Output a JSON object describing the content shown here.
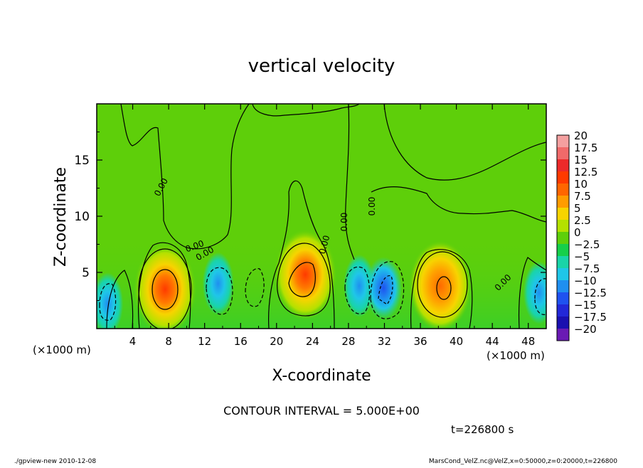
{
  "chart_data": {
    "type": "heatmap",
    "title": "vertical velocity",
    "xlabel": "X-coordinate",
    "ylabel": "Z-coordinate",
    "x_unit": "(×1000 m)",
    "y_unit": "(×1000 m)",
    "x_range": [
      0,
      50
    ],
    "y_range": [
      0,
      20
    ],
    "x_ticks": [
      "4",
      "8",
      "12",
      "16",
      "20",
      "24",
      "28",
      "32",
      "36",
      "40",
      "44",
      "48"
    ],
    "y_ticks": [
      "5",
      "10",
      "15"
    ],
    "grid": false,
    "contour_interval_text": "CONTOUR INTERVAL = 5.000E+00",
    "time_text": "t=226800 s",
    "contour_labels": [
      "0.00",
      "0.00",
      "0.00",
      "0.00",
      "0.00",
      "0.00",
      "0.00"
    ],
    "colorbar": {
      "levels": [
        "20",
        "17.5",
        "15",
        "12.5",
        "10",
        "7.5",
        "5",
        "2.5",
        "0",
        "−2.5",
        "−5",
        "−7.5",
        "−10",
        "−12.5",
        "−15",
        "−17.5",
        "−20"
      ],
      "colors": [
        "#f4a0a0",
        "#f06a6a",
        "#ec2a2a",
        "#ff3a00",
        "#ff6600",
        "#ff9c00",
        "#f7d400",
        "#b4e100",
        "#5ecf0a",
        "#16cf4a",
        "#19d4a8",
        "#1fc6e8",
        "#1f8ff0",
        "#1f52f0",
        "#2228d8",
        "#1a10b0",
        "#6a1ab4"
      ]
    },
    "features": [
      {
        "x": 7.6,
        "z": 3.5,
        "peak": 15,
        "sign": "updraft"
      },
      {
        "x": 23.2,
        "z": 4.8,
        "peak": 15,
        "sign": "updraft"
      },
      {
        "x": 38.2,
        "z": 3.8,
        "peak": 12,
        "sign": "updraft"
      },
      {
        "x": 1.2,
        "z": 2.2,
        "peak": -7,
        "sign": "downdraft"
      },
      {
        "x": 13.5,
        "z": 4.0,
        "peak": -7,
        "sign": "downdraft"
      },
      {
        "x": 29.2,
        "z": 3.8,
        "peak": -8,
        "sign": "downdraft"
      },
      {
        "x": 31.9,
        "z": 3.6,
        "peak": -12,
        "sign": "downdraft"
      },
      {
        "x": 49.2,
        "z": 3.2,
        "peak": -6,
        "sign": "downdraft"
      }
    ]
  },
  "footer": {
    "left": "./gpview-new   2010-12-08",
    "right": "MarsCond_VelZ.nc@VelZ,x=0:50000,z=0:20000,t=226800"
  }
}
